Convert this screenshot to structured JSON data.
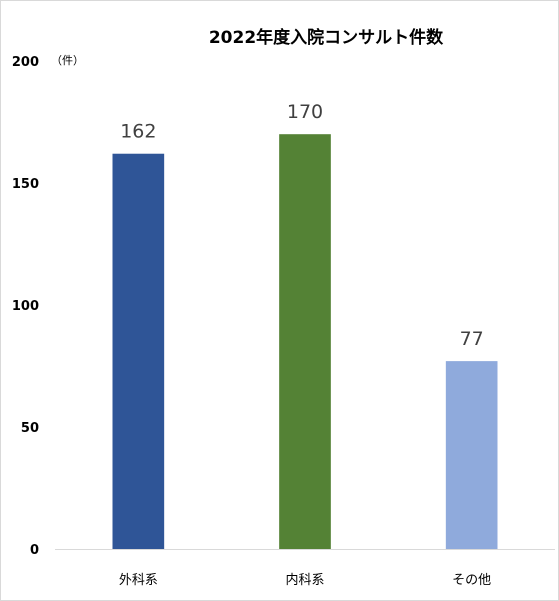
{
  "chart_data": {
    "type": "bar",
    "title": "2022年度入院コンサルト件数",
    "unit": "（件）",
    "categories": [
      "外科系",
      "内科系",
      "その他"
    ],
    "values": [
      162,
      170,
      77
    ],
    "colors": [
      "#2f5597",
      "#548235",
      "#8faadc"
    ],
    "ylim": [
      0,
      200
    ],
    "yticks": [
      "0",
      "50",
      "100",
      "150",
      "200"
    ],
    "data_labels": [
      "162",
      "170",
      "77"
    ],
    "grid": false,
    "legend": "none"
  }
}
